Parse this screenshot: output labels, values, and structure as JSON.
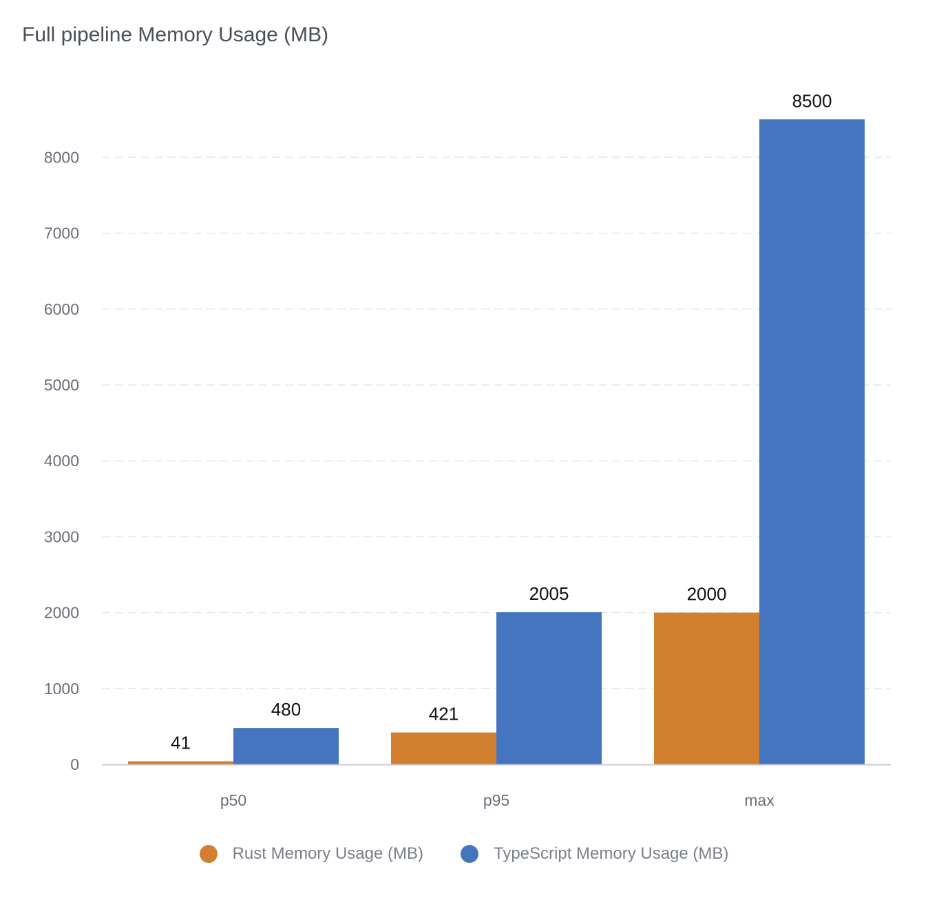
{
  "title": "Full pipeline Memory Usage (MB)",
  "chart_data": {
    "type": "bar",
    "title": "Full pipeline Memory Usage (MB)",
    "xlabel": "",
    "ylabel": "",
    "categories": [
      "p50",
      "p95",
      "max"
    ],
    "series": [
      {
        "name": "Rust Memory Usage (MB)",
        "color": "#d27f2e",
        "values": [
          41,
          421,
          2000
        ]
      },
      {
        "name": "TypeScript Memory Usage (MB)",
        "color": "#4675c0",
        "values": [
          480,
          2005,
          8500
        ]
      }
    ],
    "yticks": [
      "0",
      "1000",
      "2000",
      "3000",
      "4000",
      "5000",
      "6000",
      "7000",
      "8000"
    ],
    "ylim": [
      0,
      8500
    ],
    "grid": true,
    "legend": "bottom-center",
    "data_labels": true
  }
}
